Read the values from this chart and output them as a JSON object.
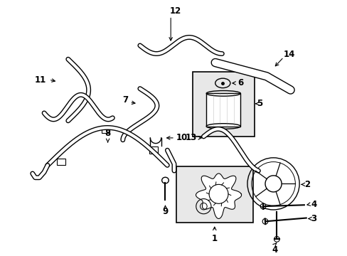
{
  "background_color": "#ffffff",
  "line_color": "#000000",
  "figsize": [
    4.89,
    3.6
  ],
  "dpi": 100,
  "label_fontsize": 8.5,
  "lw": 1.0
}
